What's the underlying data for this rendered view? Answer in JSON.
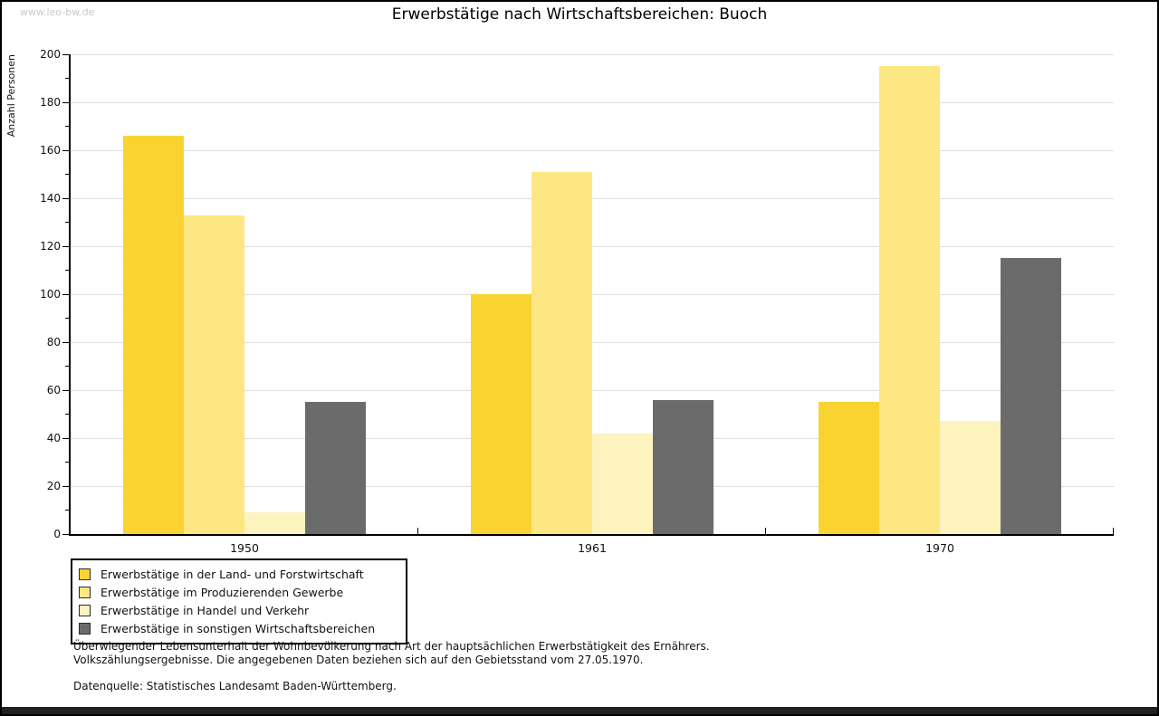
{
  "site": {
    "watermark": "www.leo-bw.de"
  },
  "chart_data": {
    "type": "bar",
    "title": "Erwerbstätige nach Wirtschaftsbereichen: Buoch",
    "xlabel": "",
    "ylabel": "Anzahl Personen",
    "categories": [
      "1950",
      "1961",
      "1970"
    ],
    "series": [
      {
        "name": "Erwerbstätige in der Land- und Forstwirtschaft",
        "color": "#fbd331",
        "values": [
          166,
          100,
          55
        ]
      },
      {
        "name": "Erwerbstätige im Produzierenden Gewerbe",
        "color": "#fce782",
        "values": [
          133,
          151,
          195
        ]
      },
      {
        "name": "Erwerbstätige in Handel und Verkehr",
        "color": "#fcf3be",
        "values": [
          9,
          42,
          47
        ]
      },
      {
        "name": "Erwerbstätige in sonstigen Wirtschaftsbereichen",
        "color": "#6b6b6b",
        "values": [
          55,
          56,
          115
        ]
      }
    ],
    "ylim": [
      0,
      200
    ],
    "yticks": [
      0,
      20,
      40,
      60,
      80,
      100,
      120,
      140,
      160,
      180,
      200
    ],
    "ytick_minor_step": 10,
    "grid": true,
    "legend_position": "bottom-left",
    "gridline_color": "#dddddd"
  },
  "footnotes": {
    "line1": "Überwiegender Lebensunterhalt der Wohnbevölkerung nach Art der hauptsächlichen Erwerbstätigkeit des Ernährers.",
    "line2": "Volkszählungsergebnisse. Die angegebenen Daten beziehen sich auf den Gebietsstand vom 27.05.1970.",
    "source": "Datenquelle: Statistisches Landesamt Baden-Württemberg."
  }
}
